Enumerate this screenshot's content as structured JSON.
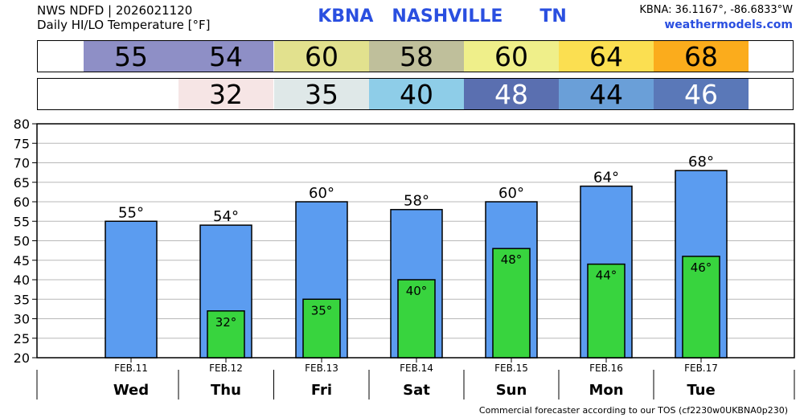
{
  "header": {
    "line1": "NWS NDFD | 2026021120",
    "line2": "Daily HI/LO Temperature [°F]",
    "station": "KBNA   NASHVILLE      TN",
    "coords": "KBNA: 36.1167°, -86.6833°W",
    "site": "weathermodels.com"
  },
  "highs_band": [
    {
      "value": "55",
      "color": "#8e8fc6"
    },
    {
      "value": "54",
      "color": "#8e8fc6"
    },
    {
      "value": "60",
      "color": "#e2e18e"
    },
    {
      "value": "58",
      "color": "#bfbf9b"
    },
    {
      "value": "60",
      "color": "#efef8a"
    },
    {
      "value": "64",
      "color": "#fbdf51"
    },
    {
      "value": "68",
      "color": "#fbac1c"
    }
  ],
  "lows_band": [
    {
      "value": "",
      "color": "#ffffff"
    },
    {
      "value": "32",
      "color": "#f6e5e5"
    },
    {
      "value": "35",
      "color": "#dfe8e8"
    },
    {
      "value": "40",
      "color": "#8ecde8"
    },
    {
      "value": "48",
      "color": "#5a6fb0",
      "text_color": "#ffffff"
    },
    {
      "value": "44",
      "color": "#6a9fd8",
      "text_color": "#000000"
    },
    {
      "value": "46",
      "color": "#5a78b8",
      "text_color": "#ffffff"
    }
  ],
  "chart_data": {
    "type": "bar",
    "categories": [
      "FEB.11",
      "FEB.12",
      "FEB.13",
      "FEB.14",
      "FEB.15",
      "FEB.16",
      "FEB.17"
    ],
    "days": [
      "Wed",
      "Thu",
      "Fri",
      "Sat",
      "Sun",
      "Mon",
      "Tue"
    ],
    "series": [
      {
        "values": [
          55,
          54,
          60,
          58,
          60,
          64,
          68
        ],
        "labels": [
          "55°",
          "54°",
          "60°",
          "58°",
          "60°",
          "64°",
          "68°"
        ],
        "color": "#5b9cf0"
      },
      {
        "values": [
          null,
          32,
          35,
          40,
          48,
          44,
          46
        ],
        "labels": [
          "",
          "32°",
          "35°",
          "40°",
          "48°",
          "44°",
          "46°"
        ],
        "color": "#38d43e"
      }
    ],
    "ylim": [
      20,
      80
    ],
    "yticks": [
      "20",
      "25",
      "30",
      "35",
      "40",
      "45",
      "50",
      "55",
      "60",
      "65",
      "70",
      "75",
      "80"
    ],
    "grid": true
  },
  "footer": "Commercial forecaster according to our TOS (cf2230w0UKBNA0p230)"
}
